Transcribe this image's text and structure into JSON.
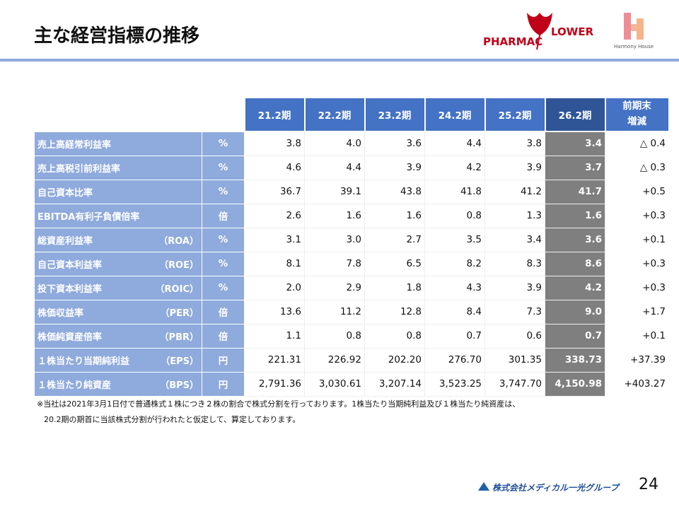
{
  "header": {
    "title": "主な経営指標の推移"
  },
  "logos": {
    "pharmaflower": {
      "left": "PHARMAC",
      "right": "LOWER"
    },
    "harmony": {
      "label": "Harmony House"
    }
  },
  "table": {
    "columns": [
      "21.2期",
      "22.2期",
      "23.2期",
      "24.2期",
      "25.2期",
      "26.2期"
    ],
    "change_header": [
      "前期末",
      "増減"
    ],
    "rows": [
      {
        "label": "売上高経常利益率",
        "unit": "%",
        "values": [
          "3.8",
          "4.0",
          "3.6",
          "4.4",
          "3.8",
          "3.4"
        ],
        "change": "△ 0.4"
      },
      {
        "label": "売上高税引前利益率",
        "unit": "%",
        "values": [
          "4.6",
          "4.4",
          "3.9",
          "4.2",
          "3.9",
          "3.7"
        ],
        "change": "△ 0.3"
      },
      {
        "label": "自己資本比率",
        "unit": "%",
        "values": [
          "36.7",
          "39.1",
          "43.8",
          "41.8",
          "41.2",
          "41.7"
        ],
        "change": "+0.5"
      },
      {
        "label": "EBITDA有利子負債倍率",
        "unit": "倍",
        "values": [
          "2.6",
          "1.6",
          "1.6",
          "0.8",
          "1.3",
          "1.6"
        ],
        "change": "+0.3"
      },
      {
        "label": "総資産利益率",
        "abbr": "（ROA）",
        "unit": "%",
        "values": [
          "3.1",
          "3.0",
          "2.7",
          "3.5",
          "3.4",
          "3.6"
        ],
        "change": "+0.1"
      },
      {
        "label": "自己資本利益率",
        "abbr": "（ROE）",
        "unit": "%",
        "values": [
          "8.1",
          "7.8",
          "6.5",
          "8.2",
          "8.3",
          "8.6"
        ],
        "change": "+0.3"
      },
      {
        "label": "投下資本利益率",
        "abbr": "（ROIC）",
        "unit": "%",
        "values": [
          "2.0",
          "2.9",
          "1.8",
          "4.3",
          "3.9",
          "4.2"
        ],
        "change": "+0.3"
      },
      {
        "label": "株価収益率",
        "abbr": "（PER）",
        "unit": "倍",
        "values": [
          "13.6",
          "11.2",
          "12.8",
          "8.4",
          "7.3",
          "9.0"
        ],
        "change": "+1.7"
      },
      {
        "label": "株価純資産倍率",
        "abbr": "（PBR）",
        "unit": "倍",
        "values": [
          "1.1",
          "0.8",
          "0.8",
          "0.7",
          "0.6",
          "0.7"
        ],
        "change": "+0.1"
      },
      {
        "label": "１株当たり当期純利益",
        "abbr": "（EPS）",
        "unit": "円",
        "values": [
          "221.31",
          "226.92",
          "202.20",
          "276.70",
          "301.35",
          "338.73"
        ],
        "change": "+37.39"
      },
      {
        "label": "１株当たり純資産",
        "abbr": "（BPS）",
        "unit": "円",
        "values": [
          "2,791.36",
          "3,030.61",
          "3,207.14",
          "3,523.25",
          "3,747.70",
          "4,150.98"
        ],
        "change": "+403.27"
      }
    ]
  },
  "notes": [
    "※当社は2021年3月1日付で普通株式１株につき２株の割合で株式分割を行っております。1株当たり当期純利益及び１株当たり純資産は、",
    "20.2期の期首に当該株式分割が行われたと仮定して、算定しております。"
  ],
  "footer": {
    "company": "株式会社メディカル一光グループ",
    "page": "24"
  }
}
